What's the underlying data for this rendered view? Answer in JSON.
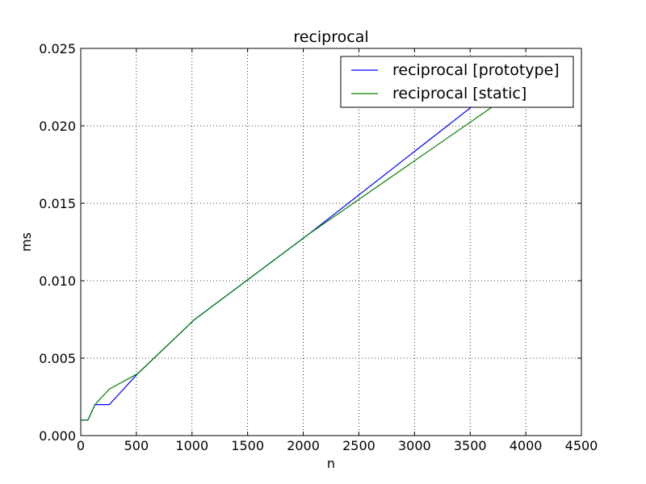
{
  "chart_data": {
    "type": "line",
    "title": "reciprocal",
    "xlabel": "n",
    "ylabel": "ms",
    "xlim": [
      0,
      4500
    ],
    "ylim": [
      0,
      0.025
    ],
    "xticks": [
      "0",
      "500",
      "1000",
      "1500",
      "2000",
      "2500",
      "3000",
      "3500",
      "4000",
      "4500"
    ],
    "yticks": [
      "0.000",
      "0.005",
      "0.010",
      "0.015",
      "0.020",
      "0.025"
    ],
    "grid": true,
    "legend_position": "top-right",
    "series": [
      {
        "name": "reciprocal [prototype]",
        "color": "#0000ff",
        "x": [
          1,
          2,
          4,
          8,
          16,
          32,
          64,
          128,
          256,
          512,
          1024,
          2048,
          4096
        ],
        "y": [
          0.001,
          0.001,
          0.001,
          0.001,
          0.001,
          0.001,
          0.001,
          0.002,
          0.002,
          0.004,
          0.0075,
          0.013,
          0.0245
        ]
      },
      {
        "name": "reciprocal [static]",
        "color": "#008000",
        "x": [
          1,
          2,
          4,
          8,
          16,
          32,
          64,
          128,
          256,
          512,
          1024,
          2048,
          4096
        ],
        "y": [
          0.001,
          0.001,
          0.001,
          0.001,
          0.001,
          0.001,
          0.001,
          0.002,
          0.003,
          0.004,
          0.0075,
          0.013,
          0.0232
        ]
      }
    ]
  }
}
